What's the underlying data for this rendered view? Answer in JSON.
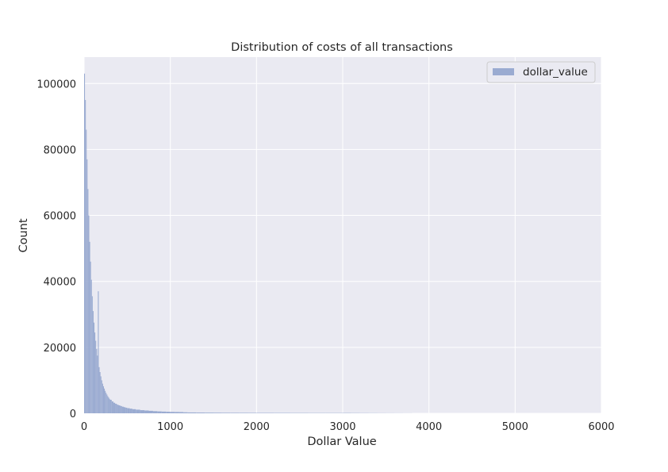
{
  "chart_data": {
    "type": "bar",
    "title": "Distribution of costs of all transactions",
    "xlabel": "Dollar Value",
    "ylabel": "Count",
    "xlim": [
      0,
      6000
    ],
    "ylim": [
      0,
      108000
    ],
    "xticks": [
      0,
      1000,
      2000,
      3000,
      4000,
      5000,
      6000
    ],
    "yticks": [
      0,
      20000,
      40000,
      60000,
      80000,
      100000
    ],
    "grid": true,
    "legend_position": "top-right",
    "bar_color": "#9aabd1",
    "plot_background": "#eaeaf2",
    "series": [
      {
        "name": "dollar_value",
        "bins": [
          {
            "x": 0,
            "y": 103000
          },
          {
            "x": 10,
            "y": 95000
          },
          {
            "x": 20,
            "y": 86000
          },
          {
            "x": 30,
            "y": 77000
          },
          {
            "x": 40,
            "y": 68000
          },
          {
            "x": 50,
            "y": 60000
          },
          {
            "x": 60,
            "y": 52000
          },
          {
            "x": 70,
            "y": 46000
          },
          {
            "x": 80,
            "y": 40500
          },
          {
            "x": 90,
            "y": 35500
          },
          {
            "x": 100,
            "y": 31000
          },
          {
            "x": 110,
            "y": 27500
          },
          {
            "x": 120,
            "y": 24500
          },
          {
            "x": 130,
            "y": 22000
          },
          {
            "x": 140,
            "y": 19500
          },
          {
            "x": 150,
            "y": 17500
          },
          {
            "x": 160,
            "y": 37000
          },
          {
            "x": 170,
            "y": 14000
          },
          {
            "x": 180,
            "y": 12500
          },
          {
            "x": 190,
            "y": 11200
          },
          {
            "x": 200,
            "y": 10000
          },
          {
            "x": 210,
            "y": 9000
          },
          {
            "x": 220,
            "y": 8200
          },
          {
            "x": 230,
            "y": 7500
          },
          {
            "x": 240,
            "y": 6800
          },
          {
            "x": 250,
            "y": 6200
          },
          {
            "x": 260,
            "y": 5700
          },
          {
            "x": 270,
            "y": 5200
          },
          {
            "x": 280,
            "y": 4800
          },
          {
            "x": 290,
            "y": 4400
          },
          {
            "x": 300,
            "y": 4100
          },
          {
            "x": 320,
            "y": 3600
          },
          {
            "x": 340,
            "y": 3200
          },
          {
            "x": 360,
            "y": 2900
          },
          {
            "x": 380,
            "y": 2600
          },
          {
            "x": 400,
            "y": 2400
          },
          {
            "x": 420,
            "y": 2200
          },
          {
            "x": 440,
            "y": 2000
          },
          {
            "x": 460,
            "y": 1850
          },
          {
            "x": 480,
            "y": 1700
          },
          {
            "x": 500,
            "y": 1550
          },
          {
            "x": 530,
            "y": 1400
          },
          {
            "x": 560,
            "y": 1250
          },
          {
            "x": 600,
            "y": 1100
          },
          {
            "x": 650,
            "y": 950
          },
          {
            "x": 700,
            "y": 850
          },
          {
            "x": 750,
            "y": 750
          },
          {
            "x": 800,
            "y": 650
          },
          {
            "x": 850,
            "y": 580
          },
          {
            "x": 900,
            "y": 520
          },
          {
            "x": 950,
            "y": 470
          },
          {
            "x": 1000,
            "y": 430
          },
          {
            "x": 1050,
            "y": 400
          },
          {
            "x": 1100,
            "y": 380
          },
          {
            "x": 1150,
            "y": 300
          },
          {
            "x": 1200,
            "y": 260
          },
          {
            "x": 1300,
            "y": 230
          },
          {
            "x": 1400,
            "y": 200
          },
          {
            "x": 1500,
            "y": 180
          },
          {
            "x": 1600,
            "y": 160
          },
          {
            "x": 1700,
            "y": 150
          },
          {
            "x": 1800,
            "y": 140
          },
          {
            "x": 1900,
            "y": 130
          },
          {
            "x": 2000,
            "y": 120
          },
          {
            "x": 2200,
            "y": 110
          },
          {
            "x": 2400,
            "y": 100
          },
          {
            "x": 2600,
            "y": 90
          },
          {
            "x": 2800,
            "y": 90
          },
          {
            "x": 3000,
            "y": 100
          },
          {
            "x": 3100,
            "y": 80
          },
          {
            "x": 3200,
            "y": 70
          },
          {
            "x": 3300,
            "y": 60
          },
          {
            "x": 3400,
            "y": 50
          },
          {
            "x": 3500,
            "y": 40
          },
          {
            "x": 3600,
            "y": 30
          },
          {
            "x": 3700,
            "y": 20
          },
          {
            "x": 3800,
            "y": 10
          }
        ],
        "bin_widths": [
          10,
          20,
          30,
          50,
          100,
          200
        ]
      }
    ]
  }
}
